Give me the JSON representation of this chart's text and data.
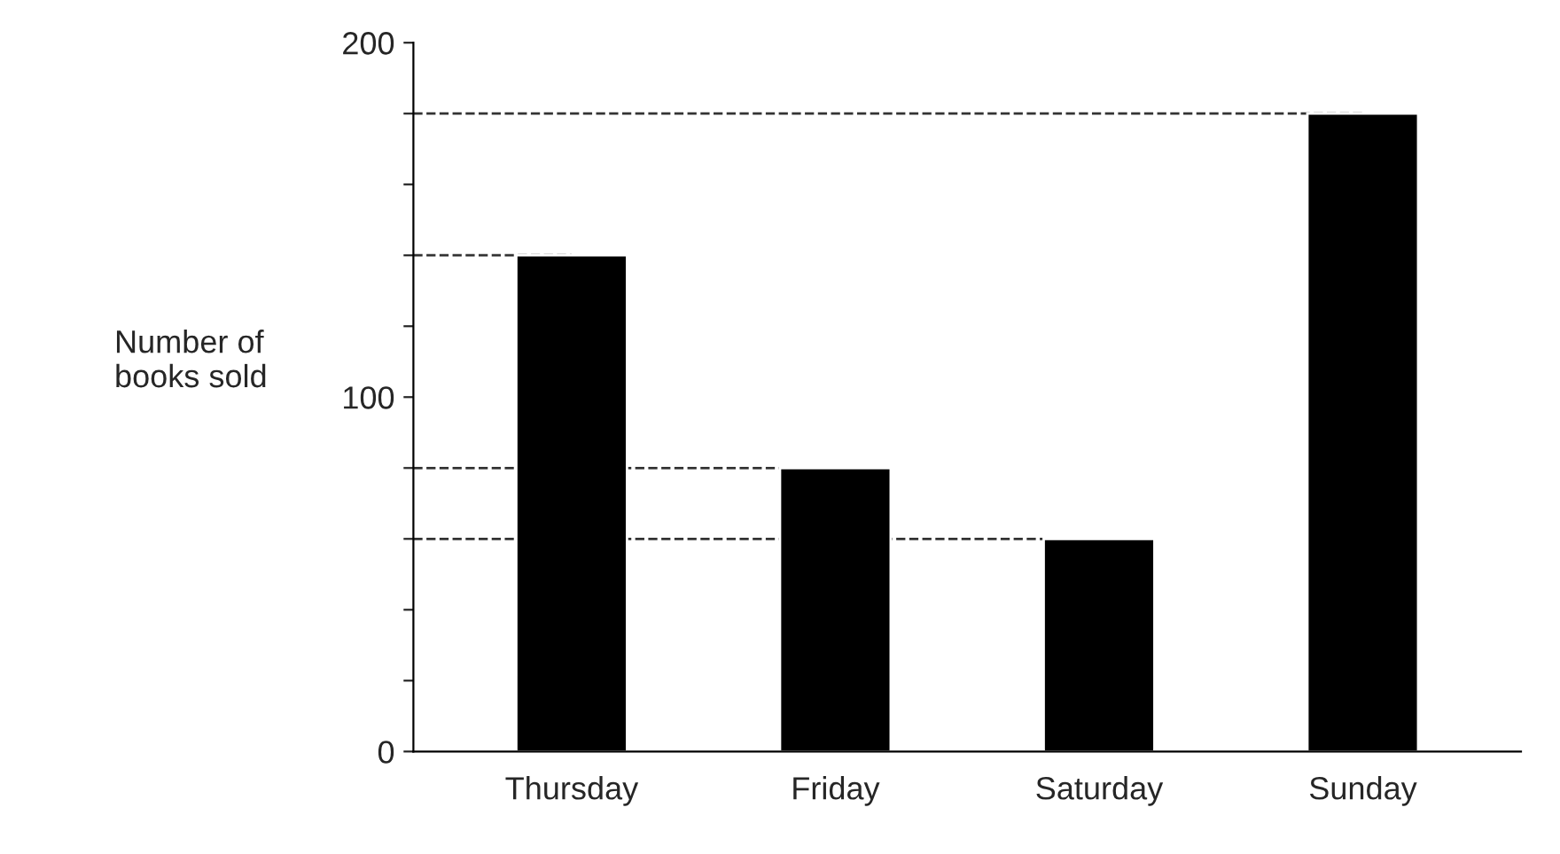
{
  "chart_data": {
    "type": "bar",
    "ylabel": "Number of\nbooks sold",
    "categories": [
      "Thursday",
      "Friday",
      "Saturday",
      "Sunday"
    ],
    "values": [
      140,
      80,
      60,
      180
    ],
    "color": "#000000",
    "ylim": [
      0,
      200
    ],
    "yticks": [
      0,
      {
        "value": 20,
        "label": null
      },
      {
        "value": 40,
        "label": null
      },
      {
        "value": 60,
        "label": null
      },
      {
        "value": 80,
        "label": null
      },
      100,
      {
        "value": 120,
        "label": null
      },
      {
        "value": 140,
        "label": null
      },
      {
        "value": 160,
        "label": null
      },
      {
        "value": 180,
        "label": null
      },
      200
    ],
    "ref_lines": [
      {
        "axis": "y",
        "value": 180,
        "color": "#333333",
        "line_style": "dashed"
      },
      {
        "axis": "y",
        "value": 140,
        "color": "#333333",
        "line_style": "dashed"
      },
      {
        "axis": "y",
        "value": 80,
        "color": "#333333",
        "line_style": "dashed"
      },
      {
        "axis": "y",
        "value": 60,
        "color": "#333333",
        "line_style": "dashed"
      }
    ],
    "grid": false,
    "legend": false
  }
}
